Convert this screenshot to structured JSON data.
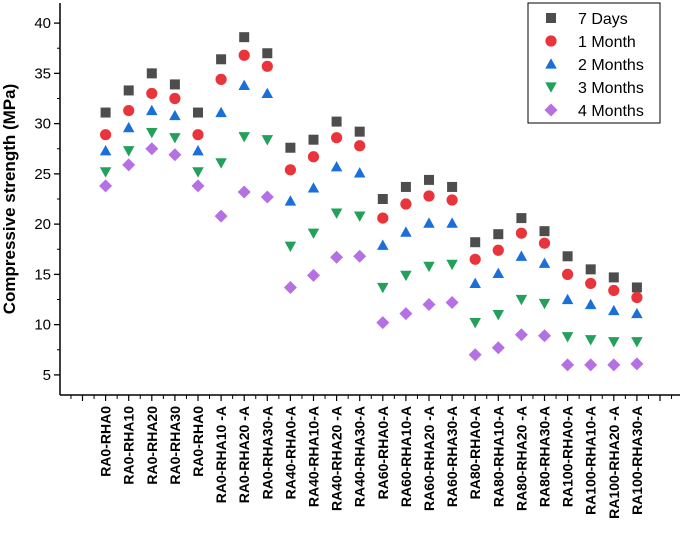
{
  "chart_data": {
    "type": "scatter",
    "title": "",
    "xlabel": "",
    "ylabel": "Compressive strength (MPa)",
    "ylim": [
      3,
      42
    ],
    "yticks": [
      5,
      10,
      15,
      20,
      25,
      30,
      35,
      40
    ],
    "legend_position": "top-right",
    "categories": [
      "RA0-RHA0",
      "RA0-RHA10",
      "RA0-RHA20",
      "RA0-RHA30",
      "RA0-RHA0",
      "RA0-RHA10 -A",
      "RA0-RHA20 -A",
      "RA0-RHA30-A",
      "RA40-RHA0-A",
      "RA40-RHA10-A",
      "RA40-RHA20 -A",
      "RA40-RHA30-A",
      "RA60-RHA0-A",
      "RA60-RHA10-A",
      "RA60-RHA20 -A",
      "RA60-RHA30-A",
      "RA80-RHA0-A",
      "RA80-RHA10-A",
      "RA80-RHA20 -A",
      "RA80-RHA30-A",
      "RA100-RHA0-A",
      "RA100-RHA10-A",
      "RA100-RHA20 -A",
      "RA100-RHA30-A"
    ],
    "series": [
      {
        "name": "7 Days",
        "marker": "square",
        "color": "#4d4d4d",
        "values": [
          31.1,
          33.3,
          35.0,
          33.9,
          31.1,
          36.4,
          38.6,
          37.0,
          27.6,
          28.4,
          30.2,
          29.2,
          22.5,
          23.7,
          24.4,
          23.7,
          18.2,
          19.0,
          20.6,
          19.3,
          16.8,
          15.5,
          14.7,
          13.7
        ]
      },
      {
        "name": "1 Month",
        "marker": "circle",
        "color": "#e8343a",
        "values": [
          28.9,
          31.3,
          33.0,
          32.5,
          28.9,
          34.4,
          36.8,
          35.7,
          25.4,
          26.7,
          28.6,
          27.8,
          20.6,
          22.0,
          22.8,
          22.4,
          16.5,
          17.4,
          19.1,
          18.1,
          15.0,
          14.1,
          13.4,
          12.7
        ]
      },
      {
        "name": "2 Months",
        "marker": "triangle-up",
        "color": "#1a6fd8",
        "values": [
          27.3,
          29.6,
          31.3,
          30.8,
          27.3,
          31.1,
          33.8,
          33.0,
          22.3,
          23.6,
          25.7,
          25.1,
          17.9,
          19.2,
          20.1,
          20.1,
          14.1,
          15.1,
          16.8,
          16.1,
          12.5,
          12.0,
          11.4,
          11.1
        ]
      },
      {
        "name": "3 Months",
        "marker": "triangle-down",
        "color": "#23a05a",
        "values": [
          25.2,
          27.3,
          29.1,
          28.6,
          25.2,
          26.1,
          28.7,
          28.4,
          17.8,
          19.1,
          21.1,
          20.8,
          13.7,
          14.9,
          15.8,
          16.0,
          10.2,
          11.0,
          12.5,
          12.1,
          8.8,
          8.5,
          8.3,
          8.3
        ]
      },
      {
        "name": "4 Months",
        "marker": "diamond",
        "color": "#b570e3",
        "values": [
          23.8,
          25.9,
          27.5,
          26.9,
          23.8,
          20.8,
          23.2,
          22.7,
          13.7,
          14.9,
          16.7,
          16.8,
          10.2,
          11.1,
          12.0,
          12.2,
          7.0,
          7.7,
          9.0,
          8.9,
          6.0,
          6.0,
          6.0,
          6.1
        ]
      }
    ]
  }
}
